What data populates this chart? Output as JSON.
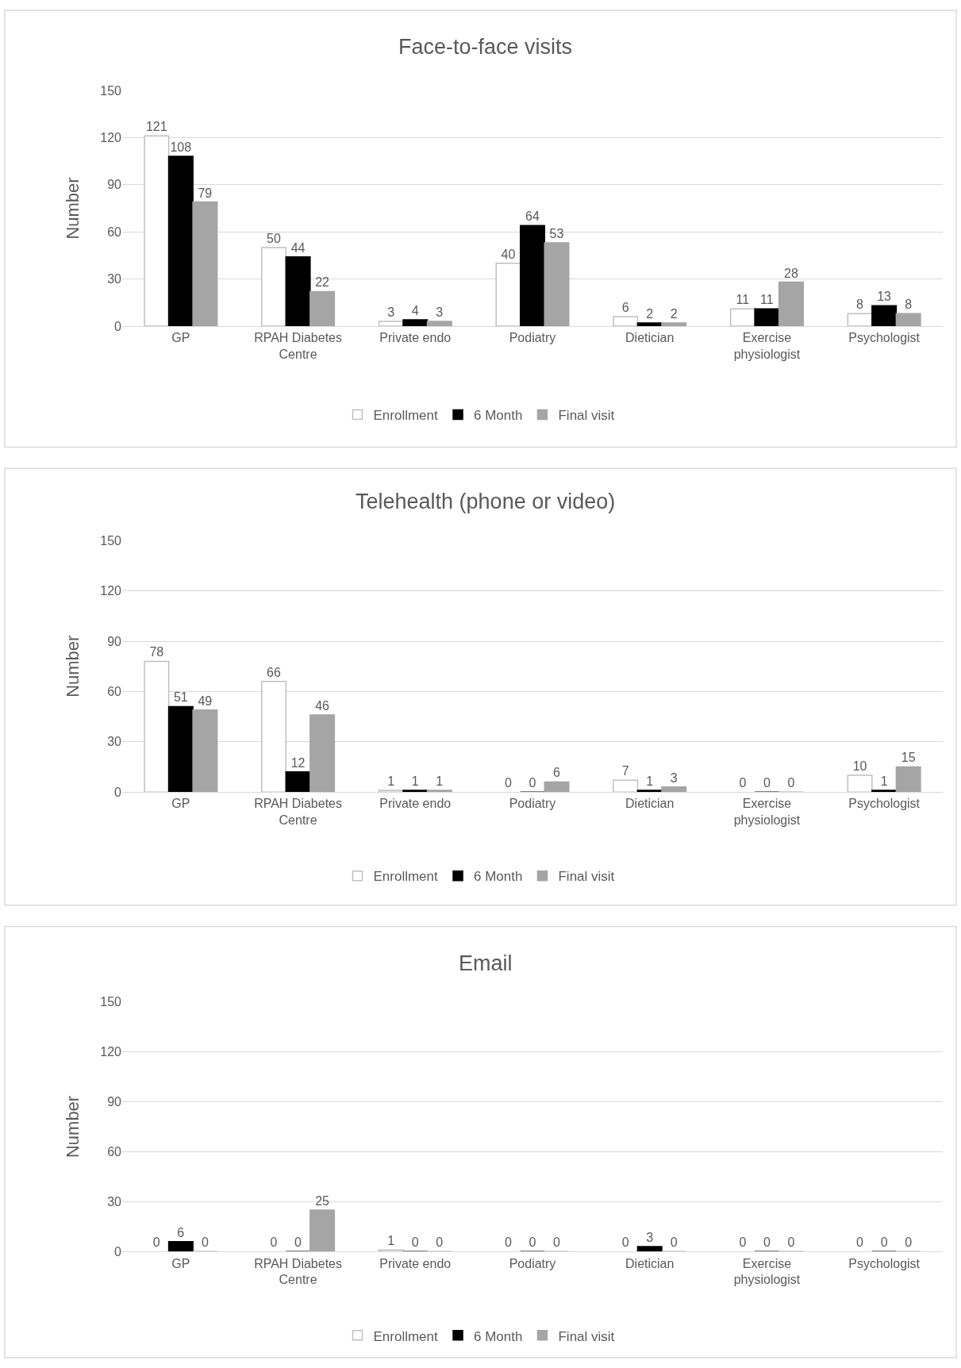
{
  "chart_data": [
    {
      "type": "bar",
      "title": "Face-to-face visits",
      "ylabel": "Number",
      "categories": [
        "GP",
        "RPAH Diabetes Centre",
        "Private endo",
        "Podiatry",
        "Dietician",
        "Exercise physiologist",
        "Psychologist"
      ],
      "series": [
        {
          "name": "Enrollment",
          "color": "#ffffff",
          "values": [
            121,
            50,
            3,
            40,
            6,
            11,
            8
          ]
        },
        {
          "name": "6 Month",
          "color": "#000000",
          "values": [
            108,
            44,
            4,
            64,
            2,
            11,
            13
          ]
        },
        {
          "name": "Final visit",
          "color": "#a5a5a5",
          "values": [
            79,
            22,
            3,
            53,
            2,
            28,
            8
          ]
        }
      ],
      "ylim": [
        0,
        150
      ],
      "yticks": [
        0,
        30,
        60,
        90,
        120,
        150
      ],
      "grid": "y",
      "legend": "bottom",
      "data_labels": true
    },
    {
      "type": "bar",
      "title": "Telehealth (phone or video)",
      "ylabel": "Number",
      "categories": [
        "GP",
        "RPAH Diabetes Centre",
        "Private endo",
        "Podiatry",
        "Dietician",
        "Exercise physiologist",
        "Psychologist"
      ],
      "series": [
        {
          "name": "Enrollment",
          "color": "#ffffff",
          "values": [
            78,
            66,
            1,
            0,
            7,
            0,
            10
          ]
        },
        {
          "name": "6 Month",
          "color": "#000000",
          "values": [
            51,
            12,
            1,
            0,
            1,
            0,
            1
          ]
        },
        {
          "name": "Final visit",
          "color": "#a5a5a5",
          "values": [
            49,
            46,
            1,
            6,
            3,
            0,
            15
          ]
        }
      ],
      "ylim": [
        0,
        150
      ],
      "yticks": [
        0,
        30,
        60,
        90,
        120,
        150
      ],
      "grid": "y",
      "legend": "bottom",
      "data_labels": true
    },
    {
      "type": "bar",
      "title": "Email",
      "ylabel": "Number",
      "categories": [
        "GP",
        "RPAH Diabetes Centre",
        "Private endo",
        "Podiatry",
        "Dietician",
        "Exercise physiologist",
        "Psychologist"
      ],
      "series": [
        {
          "name": "Enrollment",
          "color": "#ffffff",
          "values": [
            0,
            0,
            1,
            0,
            0,
            0,
            0
          ]
        },
        {
          "name": "6 Month",
          "color": "#000000",
          "values": [
            6,
            0,
            0,
            0,
            3,
            0,
            0
          ]
        },
        {
          "name": "Final visit",
          "color": "#a5a5a5",
          "values": [
            0,
            25,
            0,
            0,
            0,
            0,
            0
          ]
        }
      ],
      "ylim": [
        0,
        150
      ],
      "yticks": [
        0,
        30,
        60,
        90,
        120,
        150
      ],
      "grid": "y",
      "legend": "bottom",
      "data_labels": true
    }
  ]
}
